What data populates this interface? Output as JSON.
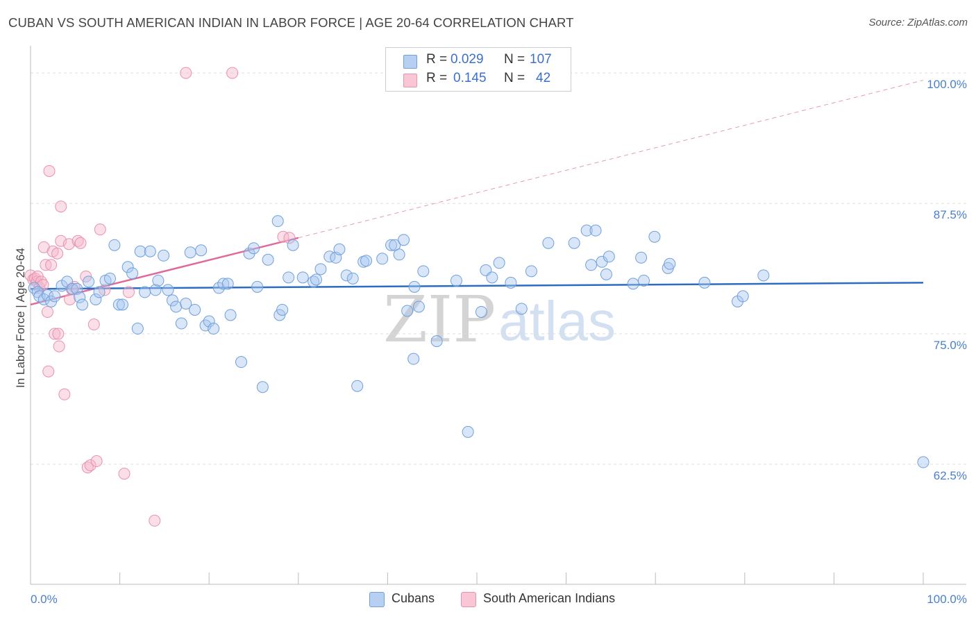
{
  "title": "CUBAN VS SOUTH AMERICAN INDIAN IN LABOR FORCE | AGE 20-64 CORRELATION CHART",
  "source": "Source: ZipAtlas.com",
  "legend": {
    "r_label": "R =",
    "n_label": "N =",
    "series": [
      {
        "r": "0.029",
        "n": "107"
      },
      {
        "r": "0.145",
        "n": "42"
      }
    ]
  },
  "bottom_legend": [
    "Cubans",
    "South American Indians"
  ],
  "watermark": {
    "zip": "ZIP",
    "atlas": "atlas"
  },
  "colors": {
    "blue_fill": "#a9c8f0",
    "blue_stroke": "#6f9fdc",
    "blue_line": "#2b6cc4",
    "pink_fill": "#f5b8cb",
    "pink_stroke": "#e991ad",
    "pink_line": "#e0699a",
    "tick_text": "#4a7fcf",
    "grid": "#dcdcdc"
  },
  "chart_data": {
    "type": "scatter",
    "title": "CUBAN VS SOUTH AMERICAN INDIAN IN LABOR FORCE | AGE 20-64 CORRELATION CHART",
    "xlabel": "",
    "ylabel": "In Labor Force | Age 20-64",
    "xlim": [
      0,
      100
    ],
    "ylim": [
      51,
      102
    ],
    "x_tick_labels": [
      "0.0%",
      "100.0%"
    ],
    "y_ticks": [
      62.5,
      75.0,
      87.5,
      100.0
    ],
    "y_tick_labels": [
      "62.5%",
      "75.0%",
      "87.5%",
      "100.0%"
    ],
    "grid": true,
    "legend": "top-center",
    "series": [
      {
        "name": "Cubans",
        "r": 0.029,
        "n": 107,
        "trend": {
          "x": [
            0,
            100
          ],
          "y": [
            79.3,
            79.9
          ],
          "style": "solid"
        },
        "points": [
          [
            0.4,
            79.4
          ],
          [
            0.8,
            79.0
          ],
          [
            1.0,
            78.6
          ],
          [
            1.5,
            78.3
          ],
          [
            1.9,
            78.7
          ],
          [
            2.3,
            78.1
          ],
          [
            2.7,
            78.6
          ],
          [
            3.5,
            79.6
          ],
          [
            4.1,
            80.0
          ],
          [
            4.7,
            79.3
          ],
          [
            5.2,
            79.3
          ],
          [
            5.5,
            78.5
          ],
          [
            5.8,
            77.8
          ],
          [
            6.5,
            80.0
          ],
          [
            7.3,
            78.3
          ],
          [
            7.7,
            79.0
          ],
          [
            8.4,
            80.1
          ],
          [
            8.9,
            80.3
          ],
          [
            9.4,
            83.5
          ],
          [
            9.9,
            77.8
          ],
          [
            10.3,
            77.8
          ],
          [
            10.9,
            81.4
          ],
          [
            11.4,
            80.8
          ],
          [
            12.0,
            75.5
          ],
          [
            12.3,
            82.9
          ],
          [
            12.8,
            79.0
          ],
          [
            13.4,
            82.9
          ],
          [
            14.0,
            79.2
          ],
          [
            14.3,
            80.1
          ],
          [
            14.9,
            82.5
          ],
          [
            15.4,
            79.2
          ],
          [
            15.9,
            78.2
          ],
          [
            16.3,
            77.6
          ],
          [
            16.9,
            76.0
          ],
          [
            17.4,
            77.9
          ],
          [
            17.9,
            82.8
          ],
          [
            18.4,
            77.3
          ],
          [
            19.1,
            83.0
          ],
          [
            19.6,
            75.8
          ],
          [
            20.0,
            76.2
          ],
          [
            20.5,
            75.5
          ],
          [
            21.1,
            79.4
          ],
          [
            21.6,
            79.8
          ],
          [
            22.1,
            79.8
          ],
          [
            22.4,
            76.8
          ],
          [
            23.6,
            72.3
          ],
          [
            24.5,
            82.7
          ],
          [
            25.0,
            83.2
          ],
          [
            25.4,
            79.5
          ],
          [
            26.0,
            69.9
          ],
          [
            26.6,
            82.1
          ],
          [
            27.7,
            85.8
          ],
          [
            27.9,
            76.8
          ],
          [
            28.2,
            77.3
          ],
          [
            28.9,
            80.4
          ],
          [
            29.4,
            83.5
          ],
          [
            30.5,
            80.4
          ],
          [
            31.7,
            80.0
          ],
          [
            32.0,
            80.2
          ],
          [
            32.5,
            81.2
          ],
          [
            33.5,
            82.4
          ],
          [
            34.2,
            82.3
          ],
          [
            34.6,
            83.1
          ],
          [
            35.4,
            80.6
          ],
          [
            36.1,
            80.3
          ],
          [
            36.6,
            70.0
          ],
          [
            37.3,
            81.9
          ],
          [
            37.6,
            82.0
          ],
          [
            39.4,
            82.2
          ],
          [
            40.4,
            83.5
          ],
          [
            40.8,
            83.5
          ],
          [
            41.3,
            82.6
          ],
          [
            41.8,
            84.0
          ],
          [
            42.2,
            77.2
          ],
          [
            42.9,
            72.6
          ],
          [
            43.0,
            79.5
          ],
          [
            43.5,
            77.6
          ],
          [
            44.0,
            81.0
          ],
          [
            45.5,
            74.3
          ],
          [
            47.7,
            80.1
          ],
          [
            49.0,
            65.6
          ],
          [
            50.5,
            77.1
          ],
          [
            51.0,
            81.1
          ],
          [
            51.7,
            80.4
          ],
          [
            52.5,
            81.8
          ],
          [
            53.8,
            79.9
          ],
          [
            55.0,
            77.4
          ],
          [
            56.1,
            81.0
          ],
          [
            58.0,
            83.7
          ],
          [
            60.9,
            83.7
          ],
          [
            62.3,
            84.9
          ],
          [
            62.8,
            81.6
          ],
          [
            63.3,
            84.9
          ],
          [
            64.0,
            81.9
          ],
          [
            64.5,
            80.7
          ],
          [
            64.8,
            82.4
          ],
          [
            67.5,
            79.8
          ],
          [
            68.4,
            82.3
          ],
          [
            68.7,
            80.1
          ],
          [
            69.9,
            84.3
          ],
          [
            71.4,
            81.3
          ],
          [
            71.6,
            81.7
          ],
          [
            75.5,
            79.9
          ],
          [
            79.2,
            78.1
          ],
          [
            79.8,
            78.6
          ],
          [
            82.1,
            80.6
          ],
          [
            100.0,
            62.7
          ]
        ]
      },
      {
        "name": "South American Indians",
        "r": 0.145,
        "n": 42,
        "trend": {
          "x": [
            0,
            30
          ],
          "y": [
            77.8,
            84.2
          ],
          "style": "solid"
        },
        "trend_extension": {
          "x": [
            30,
            100
          ],
          "y": [
            84.2,
            99.3
          ],
          "style": "dashed"
        },
        "points": [
          [
            0.0,
            80.6
          ],
          [
            0.3,
            80.2
          ],
          [
            0.5,
            80.3
          ],
          [
            0.7,
            80.0
          ],
          [
            0.8,
            80.5
          ],
          [
            1.0,
            79.4
          ],
          [
            1.2,
            80.0
          ],
          [
            1.4,
            79.7
          ],
          [
            1.5,
            83.3
          ],
          [
            1.7,
            81.6
          ],
          [
            1.9,
            77.1
          ],
          [
            2.0,
            71.4
          ],
          [
            2.1,
            90.6
          ],
          [
            2.3,
            81.6
          ],
          [
            2.5,
            82.9
          ],
          [
            2.7,
            75.0
          ],
          [
            3.0,
            82.7
          ],
          [
            3.1,
            75.0
          ],
          [
            3.2,
            73.8
          ],
          [
            3.4,
            87.2
          ],
          [
            3.4,
            83.9
          ],
          [
            3.8,
            69.2
          ],
          [
            4.3,
            83.6
          ],
          [
            4.4,
            78.3
          ],
          [
            4.6,
            79.3
          ],
          [
            4.9,
            79.5
          ],
          [
            5.3,
            83.9
          ],
          [
            5.6,
            83.7
          ],
          [
            6.2,
            80.5
          ],
          [
            6.4,
            62.2
          ],
          [
            6.7,
            62.4
          ],
          [
            7.1,
            75.9
          ],
          [
            7.4,
            62.8
          ],
          [
            7.8,
            85.0
          ],
          [
            8.3,
            79.2
          ],
          [
            10.5,
            61.6
          ],
          [
            11.0,
            79.0
          ],
          [
            13.9,
            57.1
          ],
          [
            17.4,
            100.0
          ],
          [
            22.6,
            100.0
          ],
          [
            28.3,
            84.3
          ],
          [
            29.0,
            84.2
          ]
        ]
      }
    ]
  }
}
